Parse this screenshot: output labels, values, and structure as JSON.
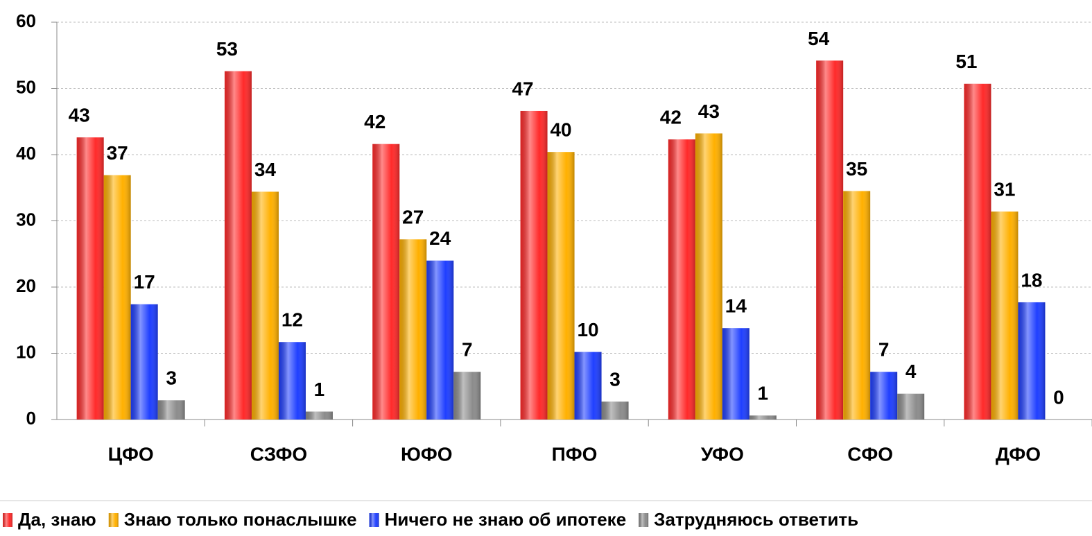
{
  "chart_data": {
    "type": "bar",
    "categories": [
      "ЦФО",
      "СЗФО",
      "ЮФО",
      "ПФО",
      "УФО",
      "СФО",
      "ДФО"
    ],
    "series": [
      {
        "name": "Да, знаю",
        "color": "#ff2a2a",
        "values": [
          42.6,
          52.6,
          41.6,
          46.6,
          42.3,
          54.2,
          50.7
        ],
        "value_labels": [
          "43",
          "53",
          "42",
          "47",
          "42",
          "54",
          "51"
        ]
      },
      {
        "name": "Знаю только понаслышке",
        "color": "#ffb000",
        "values": [
          36.9,
          34.4,
          27.2,
          40.4,
          43.2,
          34.5,
          31.4
        ],
        "value_labels": [
          "37",
          "34",
          "27",
          "40",
          "43",
          "35",
          "31"
        ]
      },
      {
        "name": "Ничего не знаю об ипотеке",
        "color": "#1f3fff",
        "values": [
          17.4,
          11.7,
          24.0,
          10.2,
          13.8,
          7.2,
          17.7
        ],
        "value_labels": [
          "17",
          "12",
          "24",
          "10",
          "14",
          "7",
          "18"
        ]
      },
      {
        "name": "Затрудняюсь ответить",
        "color": "#8c8c8c",
        "values": [
          2.9,
          1.2,
          7.2,
          2.7,
          0.6,
          3.9,
          0
        ],
        "value_labels": [
          "3",
          "1",
          "7",
          "3",
          "1",
          "4",
          "0"
        ]
      }
    ],
    "ylim": [
      0,
      60
    ],
    "yticks": [
      0,
      10,
      20,
      30,
      40,
      50,
      60
    ],
    "grid": true,
    "legend": "bottom"
  }
}
